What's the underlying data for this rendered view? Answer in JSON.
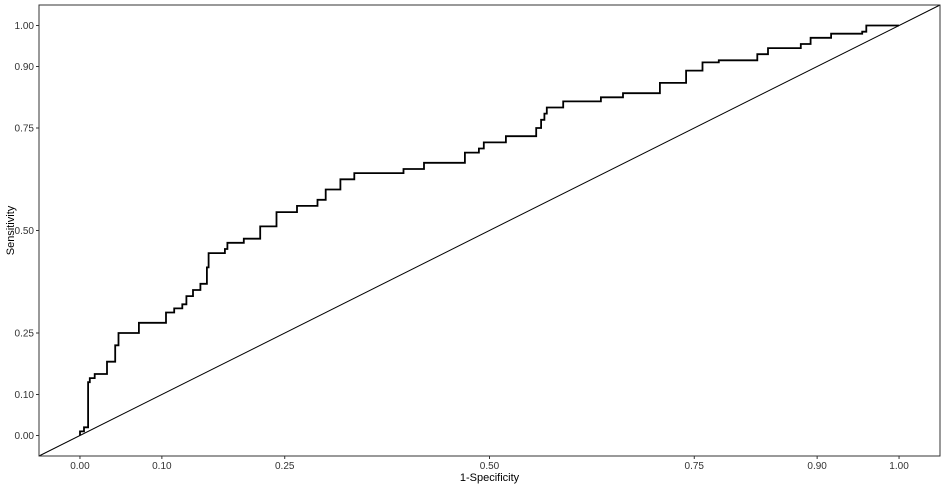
{
  "chart_data": {
    "type": "line",
    "title": "",
    "xlabel": "1-Specificity",
    "ylabel": "Sensitivity",
    "xlim": [
      -0.05,
      1.05
    ],
    "ylim": [
      -0.05,
      1.05
    ],
    "xticks": [
      0.0,
      0.1,
      0.25,
      0.5,
      0.75,
      0.9,
      1.0
    ],
    "xtick_labels": [
      "0.00",
      "0.10",
      "0.25",
      "0.50",
      "0.75",
      "0.90",
      "1.00"
    ],
    "yticks": [
      0.0,
      0.1,
      0.25,
      0.5,
      0.75,
      0.9,
      1.0
    ],
    "ytick_labels": [
      "0.00",
      "0.10",
      "0.25",
      "0.50",
      "0.75",
      "0.90",
      "1.00"
    ],
    "grid": false,
    "legend": "none",
    "series": [
      {
        "style": "step",
        "color": "#000000",
        "x": [
          0.0,
          0.0,
          0.005,
          0.005,
          0.01,
          0.01,
          0.012,
          0.012,
          0.018,
          0.018,
          0.033,
          0.033,
          0.043,
          0.043,
          0.047,
          0.047,
          0.072,
          0.072,
          0.105,
          0.105,
          0.115,
          0.115,
          0.125,
          0.125,
          0.13,
          0.13,
          0.138,
          0.138,
          0.147,
          0.147,
          0.155,
          0.155,
          0.157,
          0.157,
          0.177,
          0.177,
          0.18,
          0.18,
          0.2,
          0.2,
          0.22,
          0.22,
          0.24,
          0.24,
          0.265,
          0.265,
          0.29,
          0.29,
          0.3,
          0.3,
          0.318,
          0.318,
          0.335,
          0.335,
          0.395,
          0.395,
          0.42,
          0.42,
          0.47,
          0.47,
          0.487,
          0.487,
          0.493,
          0.493,
          0.52,
          0.52,
          0.557,
          0.557,
          0.563,
          0.563,
          0.567,
          0.567,
          0.57,
          0.57,
          0.59,
          0.59,
          0.636,
          0.636,
          0.663,
          0.663,
          0.708,
          0.708,
          0.74,
          0.74,
          0.76,
          0.76,
          0.78,
          0.78,
          0.827,
          0.827,
          0.84,
          0.84,
          0.88,
          0.88,
          0.892,
          0.892,
          0.917,
          0.917,
          0.955,
          0.955,
          0.96,
          0.96,
          0.97,
          0.97,
          0.98,
          0.98,
          0.998,
          0.998,
          1.0
        ],
        "y": [
          0.0,
          0.01,
          0.01,
          0.02,
          0.02,
          0.13,
          0.13,
          0.14,
          0.14,
          0.15,
          0.15,
          0.18,
          0.18,
          0.22,
          0.22,
          0.25,
          0.25,
          0.275,
          0.275,
          0.3,
          0.3,
          0.31,
          0.31,
          0.32,
          0.32,
          0.34,
          0.34,
          0.355,
          0.355,
          0.37,
          0.37,
          0.41,
          0.41,
          0.445,
          0.445,
          0.455,
          0.455,
          0.47,
          0.47,
          0.48,
          0.48,
          0.51,
          0.51,
          0.545,
          0.545,
          0.56,
          0.56,
          0.575,
          0.575,
          0.6,
          0.6,
          0.625,
          0.625,
          0.64,
          0.64,
          0.65,
          0.65,
          0.665,
          0.665,
          0.69,
          0.69,
          0.7,
          0.7,
          0.715,
          0.715,
          0.73,
          0.73,
          0.75,
          0.75,
          0.77,
          0.77,
          0.785,
          0.785,
          0.8,
          0.8,
          0.815,
          0.815,
          0.825,
          0.825,
          0.835,
          0.835,
          0.86,
          0.86,
          0.89,
          0.89,
          0.91,
          0.91,
          0.915,
          0.915,
          0.93,
          0.93,
          0.945,
          0.945,
          0.955,
          0.955,
          0.97,
          0.97,
          0.98,
          0.98,
          0.985,
          0.985,
          1.0,
          1.0,
          1.0,
          1.0,
          1.0,
          1.0,
          1.0,
          1.0
        ]
      },
      {
        "style": "diagonal",
        "color": "#000000",
        "x": [
          -0.05,
          1.05
        ],
        "y": [
          -0.05,
          1.05
        ]
      }
    ]
  }
}
